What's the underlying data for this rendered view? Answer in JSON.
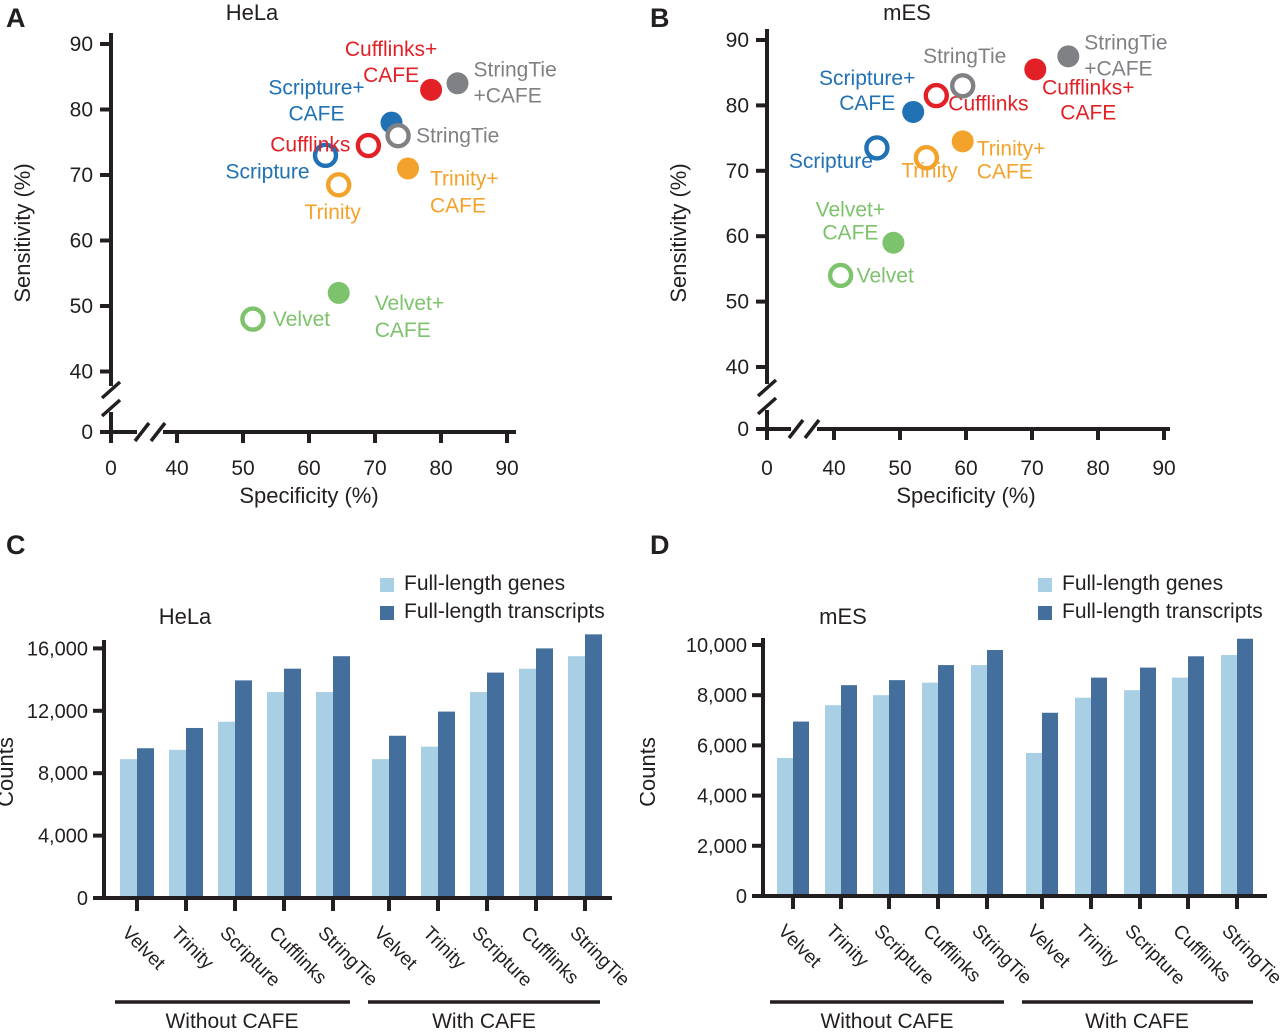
{
  "colors": {
    "red": "#e22127",
    "blue": "#2171b5",
    "orange": "#f3a32c",
    "green": "#7cc36b",
    "gray": "#808184",
    "bar_light": "#a9cfe4",
    "bar_dark": "#446e9c",
    "ink": "#231f20"
  },
  "chart_data": [
    {
      "id": "A",
      "letter": "A",
      "type": "scatter",
      "title": "HeLa",
      "xlabel": "Specificity (%)",
      "ylabel": "Sensitivity (%)",
      "xlim": [
        0,
        95
      ],
      "ylim": [
        0,
        92
      ],
      "axis_break": "both axes broken between 0 and 40",
      "x_ticks": [
        {
          "label": "0",
          "value": 0
        },
        {
          "label": "40",
          "value": 40
        },
        {
          "label": "50",
          "value": 50
        },
        {
          "label": "60",
          "value": 60
        },
        {
          "label": "70",
          "value": 70
        },
        {
          "label": "80",
          "value": 80
        },
        {
          "label": "90",
          "value": 90
        }
      ],
      "y_ticks": [
        {
          "label": "90",
          "value": 90
        },
        {
          "label": "80",
          "value": 80
        },
        {
          "label": "70",
          "value": 70
        },
        {
          "label": "60",
          "value": 60
        },
        {
          "label": "50",
          "value": 50
        },
        {
          "label": "40",
          "value": 40
        },
        {
          "label": "0",
          "value": 0
        }
      ],
      "points": [
        {
          "name": "Velvet",
          "x": 51.5,
          "y": 48,
          "filled": false,
          "color": "green",
          "label_lines": [
            "Velvet"
          ],
          "label_anchor": "start",
          "label_dx": 20,
          "label_dy": [
            7
          ]
        },
        {
          "name": "Velvet+CAFE",
          "x": 64.5,
          "y": 52,
          "filled": true,
          "color": "green",
          "label_lines": [
            "Velvet+",
            "CAFE"
          ],
          "label_anchor": "start",
          "label_dx": 36,
          "label_dy": [
            17,
            44
          ]
        },
        {
          "name": "Trinity",
          "x": 64.5,
          "y": 68.5,
          "filled": false,
          "color": "orange",
          "label_lines": [
            "Trinity"
          ],
          "label_anchor": "middle",
          "label_dx": -6,
          "label_dy": [
            34
          ]
        },
        {
          "name": "Trinity+CAFE",
          "x": 75,
          "y": 71,
          "filled": true,
          "color": "orange",
          "label_lines": [
            "Trinity+",
            "CAFE"
          ],
          "label_anchor": "start",
          "label_dx": 22,
          "label_dy": [
            17,
            44
          ]
        },
        {
          "name": "Scripture",
          "x": 62.5,
          "y": 73,
          "filled": false,
          "color": "blue",
          "label_lines": [
            "Scripture"
          ],
          "label_anchor": "end",
          "label_dx": -16,
          "label_dy": [
            23
          ]
        },
        {
          "name": "Scripture+CAFE",
          "x": 72.5,
          "y": 78,
          "filled": true,
          "color": "blue",
          "label_lines": [
            "Scripture+",
            "CAFE"
          ],
          "label_anchor": "middle",
          "label_dx": -75,
          "label_dy": [
            -28,
            -2
          ]
        },
        {
          "name": "Cufflinks",
          "x": 69,
          "y": 74.5,
          "filled": false,
          "color": "red",
          "label_lines": [
            "Cufflinks"
          ],
          "label_anchor": "end",
          "label_dx": -18,
          "label_dy": [
            6
          ]
        },
        {
          "name": "Cufflinks+CAFE",
          "x": 78.5,
          "y": 83,
          "filled": true,
          "color": "red",
          "label_lines": [
            "Cufflinks+",
            "CAFE"
          ],
          "label_anchor": "middle",
          "label_dx": -40,
          "label_dy": [
            -34,
            -8
          ]
        },
        {
          "name": "StringTie",
          "x": 73.5,
          "y": 76,
          "filled": false,
          "color": "gray",
          "label_lines": [
            "StringTie"
          ],
          "label_anchor": "start",
          "label_dx": 18,
          "label_dy": [
            7
          ]
        },
        {
          "name": "StringTie+CAFE",
          "x": 82.5,
          "y": 84,
          "filled": true,
          "color": "gray",
          "label_lines": [
            "StringTie",
            "+CAFE"
          ],
          "label_anchor": "start",
          "label_dx": 16,
          "label_dy": [
            -7,
            19
          ]
        }
      ]
    },
    {
      "id": "B",
      "letter": "B",
      "type": "scatter",
      "title": "mES",
      "xlabel": "Specificity (%)",
      "ylabel": "Sensitivity (%)",
      "xlim": [
        0,
        95
      ],
      "ylim": [
        0,
        92
      ],
      "axis_break": "both axes broken between 0 and 40",
      "x_ticks": [
        {
          "label": "0",
          "value": 0
        },
        {
          "label": "40",
          "value": 40
        },
        {
          "label": "50",
          "value": 50
        },
        {
          "label": "60",
          "value": 60
        },
        {
          "label": "70",
          "value": 70
        },
        {
          "label": "80",
          "value": 80
        },
        {
          "label": "90",
          "value": 90
        }
      ],
      "y_ticks": [
        {
          "label": "90",
          "value": 90
        },
        {
          "label": "80",
          "value": 80
        },
        {
          "label": "70",
          "value": 70
        },
        {
          "label": "60",
          "value": 60
        },
        {
          "label": "50",
          "value": 50
        },
        {
          "label": "40",
          "value": 40
        },
        {
          "label": "0",
          "value": 0
        }
      ],
      "points": [
        {
          "name": "Velvet",
          "x": 41,
          "y": 54,
          "filled": false,
          "color": "green",
          "label_lines": [
            "Velvet"
          ],
          "label_anchor": "start",
          "label_dx": 16,
          "label_dy": [
            7
          ]
        },
        {
          "name": "Velvet+CAFE",
          "x": 49,
          "y": 59,
          "filled": true,
          "color": "green",
          "label_lines": [
            "Velvet+",
            "CAFE"
          ],
          "label_anchor": "middle",
          "label_dx": -43,
          "label_dy": [
            -26,
            -3
          ]
        },
        {
          "name": "Trinity",
          "x": 54,
          "y": 72,
          "filled": false,
          "color": "orange",
          "label_lines": [
            "Trinity"
          ],
          "label_anchor": "middle",
          "label_dx": 3,
          "label_dy": [
            20
          ]
        },
        {
          "name": "Trinity+CAFE",
          "x": 59.5,
          "y": 74.5,
          "filled": true,
          "color": "orange",
          "label_lines": [
            "Trinity+",
            "CAFE"
          ],
          "label_anchor": "start",
          "label_dx": 14,
          "label_dy": [
            14,
            37
          ]
        },
        {
          "name": "Scripture",
          "x": 46.5,
          "y": 73.5,
          "filled": false,
          "color": "blue",
          "label_lines": [
            "Scripture"
          ],
          "label_anchor": "end",
          "label_dx": -4,
          "label_dy": [
            20
          ]
        },
        {
          "name": "Scripture+CAFE",
          "x": 52,
          "y": 79,
          "filled": true,
          "color": "blue",
          "label_lines": [
            "Scripture+",
            "CAFE"
          ],
          "label_anchor": "middle",
          "label_dx": -46,
          "label_dy": [
            -27,
            -2
          ]
        },
        {
          "name": "Cufflinks",
          "x": 55.5,
          "y": 81.5,
          "filled": false,
          "color": "red",
          "label_lines": [
            "Cufflinks"
          ],
          "label_anchor": "start",
          "label_dx": 12,
          "label_dy": [
            15
          ]
        },
        {
          "name": "Cufflinks+CAFE",
          "x": 70.5,
          "y": 85.5,
          "filled": true,
          "color": "red",
          "label_lines": [
            "Cufflinks+",
            "CAFE"
          ],
          "label_anchor": "middle",
          "label_dx": 53,
          "label_dy": [
            25,
            50
          ]
        },
        {
          "name": "StringTie",
          "x": 59.5,
          "y": 83,
          "filled": false,
          "color": "gray",
          "label_lines": [
            "StringTie"
          ],
          "label_anchor": "middle",
          "label_dx": 2,
          "label_dy": [
            -23
          ]
        },
        {
          "name": "StringTie+CAFE",
          "x": 75.5,
          "y": 87.5,
          "filled": true,
          "color": "gray",
          "label_lines": [
            "StringTie",
            "+CAFE"
          ],
          "label_anchor": "start",
          "label_dx": 16,
          "label_dy": [
            -7,
            19
          ]
        }
      ]
    },
    {
      "id": "C",
      "letter": "C",
      "type": "bar",
      "title": "HeLa",
      "ylabel": "Counts",
      "ylim": [
        0,
        16000
      ],
      "y_ticks": [
        {
          "label": "16,000",
          "value": 16000
        },
        {
          "label": "12,000",
          "value": 12000
        },
        {
          "label": "8,000",
          "value": 8000
        },
        {
          "label": "4,000",
          "value": 4000
        },
        {
          "label": "0",
          "value": 0
        }
      ],
      "categories": [
        "Velvet",
        "Trinity",
        "Scripture",
        "Cufflinks",
        "StringTie"
      ],
      "groups": [
        "Without CAFE",
        "With CAFE"
      ],
      "legend": [
        "Full-length genes",
        "Full-length transcripts"
      ],
      "series": [
        {
          "name": "Full-length genes",
          "values": [
            [
              8900,
              9500,
              11300,
              13200,
              13200
            ],
            [
              8900,
              9700,
              13200,
              14700,
              15500
            ]
          ]
        },
        {
          "name": "Full-length transcripts",
          "values": [
            [
              9600,
              10900,
              13950,
              14700,
              15500
            ],
            [
              10400,
              11950,
              14450,
              16000,
              16900
            ]
          ]
        }
      ]
    },
    {
      "id": "D",
      "letter": "D",
      "type": "bar",
      "title": "mES",
      "ylabel": "Counts",
      "ylim": [
        0,
        10000
      ],
      "y_ticks": [
        {
          "label": "10,000",
          "value": 10000
        },
        {
          "label": "8,000",
          "value": 8000
        },
        {
          "label": "6,000",
          "value": 6000
        },
        {
          "label": "4,000",
          "value": 4000
        },
        {
          "label": "2,000",
          "value": 2000
        },
        {
          "label": "0",
          "value": 0
        }
      ],
      "categories": [
        "Velvet",
        "Trinity",
        "Scripture",
        "Cufflinks",
        "StringTie"
      ],
      "groups": [
        "Without CAFE",
        "With CAFE"
      ],
      "legend": [
        "Full-length genes",
        "Full-length transcripts"
      ],
      "series": [
        {
          "name": "Full-length genes",
          "values": [
            [
              5500,
              7600,
              8000,
              8500,
              9200
            ],
            [
              5700,
              7900,
              8200,
              8700,
              9600
            ]
          ]
        },
        {
          "name": "Full-length transcripts",
          "values": [
            [
              6950,
              8400,
              8600,
              9200,
              9800
            ],
            [
              7300,
              8700,
              9100,
              9550,
              10250
            ]
          ]
        }
      ]
    }
  ]
}
